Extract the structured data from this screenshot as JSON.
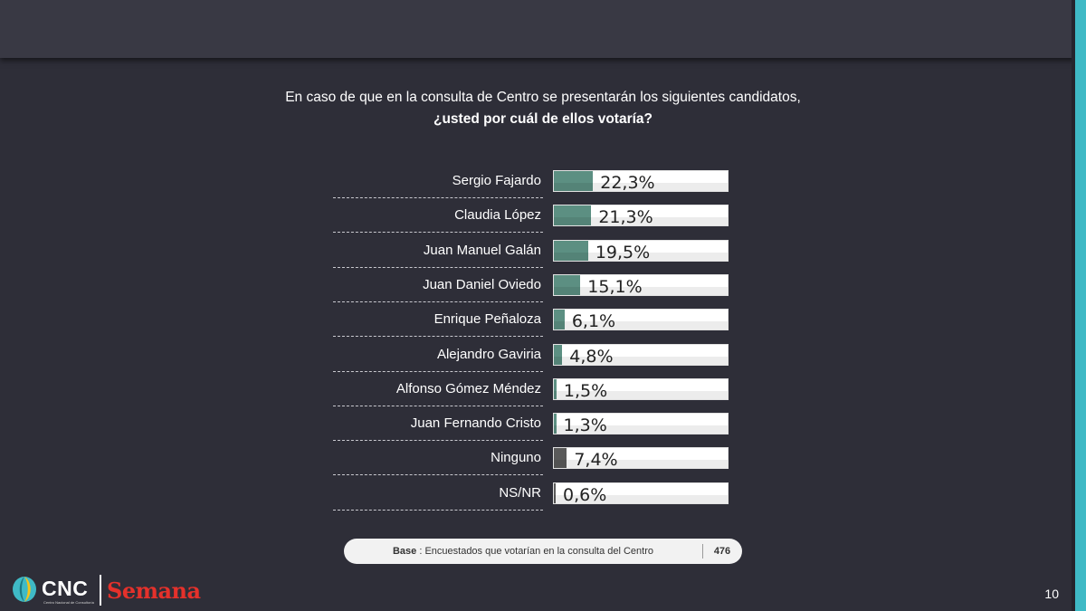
{
  "question": {
    "line1": "En caso de que en la consulta de Centro se presentarán los siguientes candidatos,",
    "line2": "¿usted por cuál de ellos votaría?"
  },
  "chart_data": {
    "type": "bar",
    "orientation": "horizontal",
    "categories": [
      "Sergio Fajardo",
      "Claudia López",
      "Juan Manuel Galán",
      "Juan Daniel Oviedo",
      "Enrique Peñaloza",
      "Alejandro Gaviria",
      "Alfonso Gómez Méndez",
      "Juan Fernando Cristo",
      "Ninguno",
      "NS/NR"
    ],
    "values": [
      22.3,
      21.3,
      19.5,
      15.1,
      6.1,
      4.8,
      1.5,
      1.3,
      7.4,
      0.6
    ],
    "labels": [
      "22,3%",
      "21,3%",
      "19,5%",
      "15,1%",
      "6,1%",
      "4,8%",
      "1,5%",
      "1,3%",
      "7,4%",
      "0,6%"
    ],
    "colors": [
      "#5c8f82",
      "#5c8f82",
      "#5c8f82",
      "#5c8f82",
      "#5c8f82",
      "#5c8f82",
      "#5c8f82",
      "#5c8f82",
      "#5a5a5a",
      "#5a5a5a"
    ],
    "xlim": [
      0,
      100
    ],
    "grid": false,
    "legend": "none"
  },
  "base": {
    "label": "Base",
    "text": " : Encuestados que votarían en la consulta del Centro",
    "n": "476"
  },
  "logos": {
    "cnc": "CNC",
    "cnc_sub": "Centro Nacional de Consultoría",
    "semana": "Semana"
  },
  "page_number": "10"
}
